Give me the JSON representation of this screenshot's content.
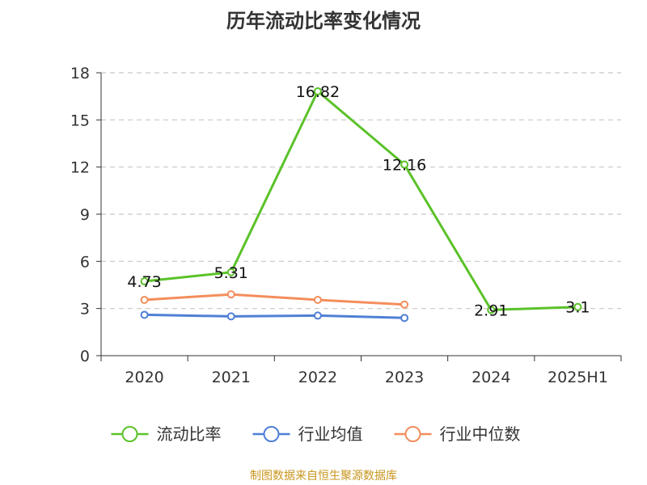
{
  "chart_data": {
    "type": "line",
    "title": "历年流动比率变化情况",
    "categories": [
      "2020",
      "2021",
      "2022",
      "2023",
      "2024",
      "2025H1"
    ],
    "ylim": [
      0,
      18
    ],
    "yticks": [
      0,
      3,
      6,
      9,
      12,
      15,
      18
    ],
    "grid": true,
    "legend_position": "bottom",
    "series": [
      {
        "name": "流动比率",
        "color": "#5bc229",
        "values": [
          4.73,
          5.31,
          16.82,
          12.16,
          2.91,
          3.1
        ],
        "labels": [
          "4.73",
          "5.31",
          "16.82",
          "12.16",
          "2.91",
          "3.1"
        ]
      },
      {
        "name": "行业均值",
        "color": "#4f7fd6",
        "values": [
          2.6,
          2.5,
          2.55,
          2.4,
          null,
          null
        ]
      },
      {
        "name": "行业中位数",
        "color": "#f48d5c",
        "values": [
          3.55,
          3.9,
          3.55,
          3.25,
          null,
          null
        ]
      }
    ]
  },
  "source": "制图数据来自恒生聚源数据库"
}
